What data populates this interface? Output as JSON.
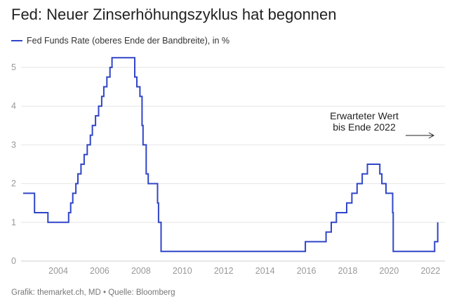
{
  "title": "Fed: Neuer Zinserhöhungszyklus hat begonnen",
  "legend_label": "Fed Funds Rate (oberes Ende der Bandbreite), in %",
  "footer": "Grafik: themarket.ch, MD • Quelle: Bloomberg",
  "colors": {
    "series": "#3045c8",
    "grid": "#e6e6e6",
    "tick": "#999999"
  },
  "chart_data": {
    "type": "line",
    "title": "Fed: Neuer Zinserhöhungszyklus hat begonnen",
    "xlabel": "",
    "ylabel": "",
    "xlim": [
      2002.2,
      2022.7
    ],
    "ylim": [
      0,
      5.5
    ],
    "xticks": [
      2004,
      2006,
      2008,
      2010,
      2012,
      2014,
      2016,
      2018,
      2020,
      2022
    ],
    "yticks": [
      0,
      1,
      2,
      3,
      4,
      5
    ],
    "grid": "horizontal",
    "legend": "top-left",
    "annotation": {
      "lines": [
        "Erwarteter Wert",
        "bis Ende 2022"
      ],
      "arrow": "right"
    },
    "series": [
      {
        "name": "Fed Funds Rate (oberes Ende der Bandbreite), in %",
        "step": true,
        "points": [
          [
            2002.3,
            1.75
          ],
          [
            2002.85,
            1.25
          ],
          [
            2003.5,
            1.0
          ],
          [
            2004.5,
            1.25
          ],
          [
            2004.6,
            1.5
          ],
          [
            2004.7,
            1.75
          ],
          [
            2004.85,
            2.0
          ],
          [
            2004.95,
            2.25
          ],
          [
            2005.1,
            2.5
          ],
          [
            2005.25,
            2.75
          ],
          [
            2005.4,
            3.0
          ],
          [
            2005.55,
            3.25
          ],
          [
            2005.65,
            3.5
          ],
          [
            2005.8,
            3.75
          ],
          [
            2005.95,
            4.0
          ],
          [
            2006.1,
            4.25
          ],
          [
            2006.2,
            4.5
          ],
          [
            2006.35,
            4.75
          ],
          [
            2006.5,
            5.0
          ],
          [
            2006.6,
            5.25
          ],
          [
            2007.7,
            4.75
          ],
          [
            2007.8,
            4.5
          ],
          [
            2007.95,
            4.25
          ],
          [
            2008.05,
            3.5
          ],
          [
            2008.1,
            3.0
          ],
          [
            2008.25,
            2.25
          ],
          [
            2008.35,
            2.0
          ],
          [
            2008.8,
            1.5
          ],
          [
            2008.85,
            1.0
          ],
          [
            2008.97,
            0.25
          ],
          [
            2015.95,
            0.5
          ],
          [
            2016.95,
            0.75
          ],
          [
            2017.2,
            1.0
          ],
          [
            2017.45,
            1.25
          ],
          [
            2017.95,
            1.5
          ],
          [
            2018.2,
            1.75
          ],
          [
            2018.45,
            2.0
          ],
          [
            2018.7,
            2.25
          ],
          [
            2018.95,
            2.5
          ],
          [
            2019.55,
            2.25
          ],
          [
            2019.65,
            2.0
          ],
          [
            2019.85,
            1.75
          ],
          [
            2020.17,
            1.25
          ],
          [
            2020.2,
            0.25
          ],
          [
            2022.2,
            0.5
          ],
          [
            2022.35,
            1.0
          ]
        ]
      }
    ]
  }
}
